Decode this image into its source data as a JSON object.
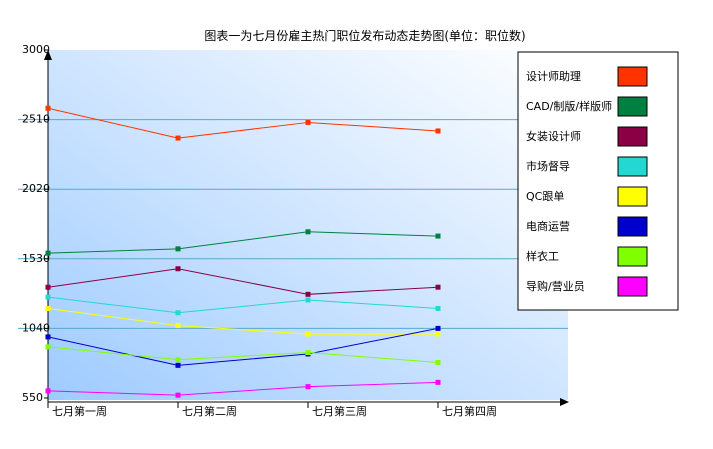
{
  "chart_data": {
    "type": "line",
    "title": "图表一为七月份雇主热门职位发布动态走势图(单位：职位数)",
    "categories": [
      "七月第一周",
      "七月第二周",
      "七月第三周",
      "七月第四周"
    ],
    "yticks": [
      "3000",
      "2510",
      "2020",
      "1530",
      "1040",
      "550"
    ],
    "ylim": [
      550,
      3000
    ],
    "grid": true,
    "legend_position": "right",
    "series": [
      {
        "name": "设计师助理",
        "color": "#ff3300",
        "values": [
          2590,
          2380,
          2490,
          2430
        ]
      },
      {
        "name": "CAD/制版/样版师",
        "color": "#008040",
        "values": [
          1570,
          1600,
          1720,
          1690
        ]
      },
      {
        "name": "女装设计师",
        "color": "#8b0045",
        "values": [
          1330,
          1460,
          1280,
          1330
        ]
      },
      {
        "name": "市场督导",
        "color": "#22d8d0",
        "values": [
          1260,
          1150,
          1240,
          1180
        ]
      },
      {
        "name": "QC跟单",
        "color": "#ffff00",
        "values": [
          1180,
          1060,
          1000,
          1000
        ]
      },
      {
        "name": "电商运营",
        "color": "#0000cc",
        "values": [
          980,
          780,
          860,
          1040
        ]
      },
      {
        "name": "样衣工",
        "color": "#80ff00",
        "values": [
          910,
          820,
          870,
          800
        ]
      },
      {
        "name": "导购/营业员",
        "color": "#ff00ff",
        "values": [
          600,
          570,
          630,
          660
        ]
      }
    ]
  }
}
